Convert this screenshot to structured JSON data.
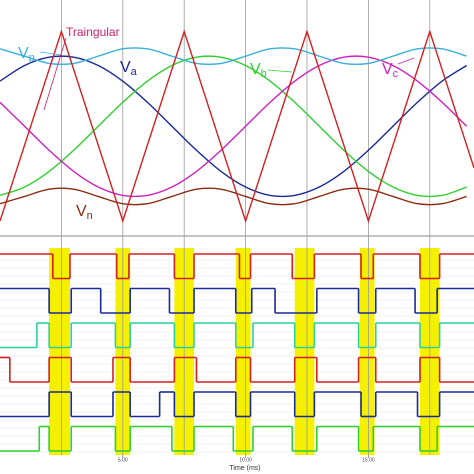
{
  "chart_data": {
    "type": "line",
    "x_label": "Time (ms)",
    "xlim": [
      0,
      19.3
    ],
    "xticks": [
      {
        "value": 5,
        "label": "5.00"
      },
      {
        "value": 10,
        "label": "10.00"
      },
      {
        "value": 15,
        "label": "15.00"
      }
    ],
    "ylim": [
      -1.45,
      1.8
    ],
    "x": [
      0,
      1,
      2,
      3,
      4,
      5,
      6,
      7,
      8,
      9,
      10,
      11,
      12,
      13,
      14,
      15,
      16,
      17,
      18,
      19
    ],
    "series": [
      {
        "name": "Va",
        "color": "#1a2a9a",
        "values": [
          0.643,
          0.866,
          0.985,
          0.985,
          0.866,
          0.643,
          0.342,
          0,
          -0.342,
          -0.643,
          -0.866,
          -0.985,
          -0.985,
          -0.866,
          -0.643,
          -0.342,
          0,
          0.342,
          0.643,
          0.866
        ]
      },
      {
        "name": "Vb",
        "color": "#2fd02f",
        "values": [
          -0.985,
          -0.866,
          -0.643,
          -0.342,
          0,
          0.342,
          0.643,
          0.866,
          0.985,
          0.985,
          0.866,
          0.643,
          0.342,
          0,
          -0.342,
          -0.643,
          -0.866,
          -0.985,
          -0.985,
          -0.866
        ]
      },
      {
        "name": "Vc",
        "color": "#d020c0",
        "values": [
          0.342,
          0,
          -0.342,
          -0.643,
          -0.866,
          -0.985,
          -0.985,
          -0.866,
          -0.643,
          -0.342,
          0,
          0.342,
          0.643,
          0.866,
          0.985,
          0.985,
          0.866,
          0.643,
          0.342,
          0
        ]
      },
      {
        "name": "Vp",
        "color": "#3ab0d8",
        "values": [
          1.104,
          1.0,
          0.896,
          0.896,
          1.0,
          1.104,
          1.104,
          1.0,
          0.896,
          0.896,
          1.0,
          1.104,
          1.104,
          1.0,
          0.896,
          0.896,
          1.0,
          1.104,
          1.104,
          1.0
        ]
      },
      {
        "name": "Vn",
        "color": "#8a2a10",
        "values": [
          -1.104,
          -1.0,
          -0.896,
          -0.896,
          -1.0,
          -1.104,
          -1.104,
          -1.0,
          -0.896,
          -0.896,
          -1.0,
          -1.104,
          -1.104,
          -1.0,
          -0.896,
          -0.896,
          -1.0,
          -1.104,
          -1.104,
          -1.0
        ]
      }
    ],
    "triangular": {
      "name": "Traingular",
      "label_color": "#d0206a",
      "color": "#d42020",
      "x": [
        0,
        2.5,
        5,
        7.5,
        10,
        12.5,
        15,
        17.5,
        19.3
      ],
      "values": [
        -1.35,
        1.35,
        -1.35,
        1.35,
        -1.35,
        1.35,
        -1.35,
        1.35,
        -0.594
      ]
    },
    "highlight_color": "#f5f000",
    "highlights": [
      [
        2.0,
        2.85
      ],
      [
        4.7,
        5.3
      ],
      [
        7.1,
        7.9
      ],
      [
        9.6,
        10.2
      ],
      [
        12.0,
        12.8
      ],
      [
        14.65,
        15.25
      ],
      [
        17.1,
        17.9
      ]
    ],
    "digital": [
      {
        "color": "#d42020",
        "x": [
          0,
          2.15,
          2.85,
          4.75,
          5.25,
          7.1,
          7.9,
          9.75,
          10.2,
          11.9,
          12.8,
          14.7,
          15.2,
          17.1,
          17.9
        ],
        "values": [
          1,
          0,
          1,
          0,
          1,
          0,
          1,
          0,
          1,
          0,
          1,
          0,
          1,
          0,
          1
        ]
      },
      {
        "color": "#1a2a9a",
        "x": [
          0,
          2.0,
          2.9,
          4.1,
          5.3,
          6.9,
          7.9,
          9.6,
          10.25,
          11.2,
          12.9,
          14.6,
          15.3,
          16.9,
          17.8
        ],
        "values": [
          1,
          0,
          1,
          0,
          1,
          0,
          1,
          0,
          1,
          0,
          1,
          0,
          1,
          0,
          1
        ]
      },
      {
        "color": "#2fd0a0",
        "x": [
          0,
          1.5,
          2.0,
          2.9,
          4.7,
          5.3,
          7.1,
          7.9,
          9.6,
          10.3,
          12.0,
          12.8,
          14.6,
          15.3,
          17.1,
          17.9
        ],
        "values": [
          0,
          1,
          0,
          1,
          0,
          1,
          0,
          1,
          0,
          1,
          0,
          1,
          0,
          1,
          0,
          1
        ]
      },
      {
        "color": "#d42020",
        "x": [
          0,
          0.4,
          2.0,
          2.9,
          4.6,
          5.3,
          7.1,
          8.0,
          9.6,
          10.2,
          12.0,
          12.9,
          14.6,
          15.3,
          17.1,
          17.9
        ],
        "values": [
          1,
          0,
          1,
          0,
          1,
          0,
          1,
          0,
          1,
          0,
          1,
          0,
          1,
          0,
          1,
          0
        ]
      },
      {
        "color": "#1a2a9a",
        "x": [
          0,
          2.0,
          2.9,
          4.6,
          5.3,
          6.5,
          7.1,
          7.9,
          9.6,
          10.2,
          12.0,
          12.8,
          14.7,
          15.3,
          17.0,
          17.9
        ],
        "values": [
          0,
          1,
          0,
          1,
          0,
          1,
          0,
          1,
          0,
          1,
          0,
          1,
          0,
          1,
          0,
          1
        ]
      },
      {
        "color": "#2fd02f",
        "x": [
          0,
          1.6,
          2.0,
          2.9,
          4.7,
          5.3,
          7.0,
          7.9,
          9.5,
          10.3,
          11.9,
          12.9,
          14.6,
          15.2,
          17.1,
          17.8
        ],
        "values": [
          0,
          1,
          0,
          1,
          0,
          1,
          0,
          1,
          0,
          1,
          0,
          1,
          0,
          1,
          0,
          1
        ]
      }
    ]
  }
}
